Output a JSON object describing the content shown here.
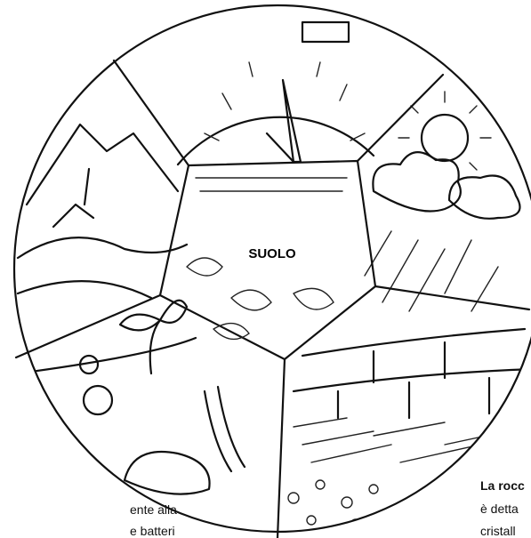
{
  "center_label": "SUOLO",
  "left_text": [
    "ente alla",
    "e batteri"
  ],
  "right_text": {
    "heading": "La rocc",
    "lines": [
      "è detta",
      "cristall"
    ]
  }
}
